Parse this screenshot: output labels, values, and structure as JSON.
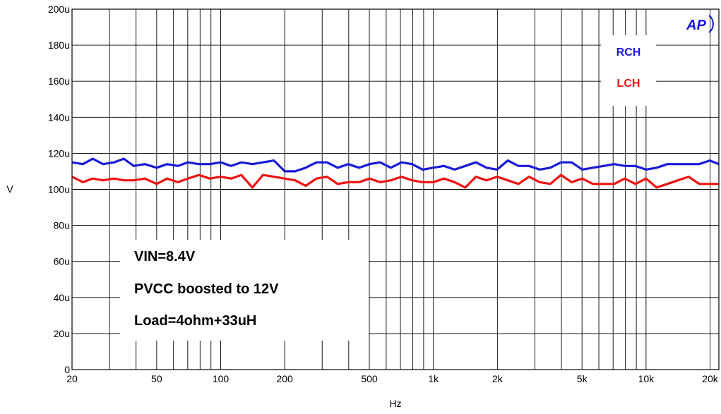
{
  "chart_data": {
    "type": "line",
    "xlabel": "Hz",
    "ylabel": "V",
    "x_scale": "log",
    "xlim": [
      20,
      22000
    ],
    "ylim": [
      0,
      200
    ],
    "grid": true,
    "x_ticks": [
      20,
      50,
      100,
      200,
      500,
      1000,
      2000,
      5000,
      10000,
      20000
    ],
    "x_tick_labels": [
      "20",
      "50",
      "100",
      "200",
      "500",
      "1k",
      "2k",
      "5k",
      "10k",
      "20k"
    ],
    "x_minor_gridlines": [
      30,
      40,
      60,
      70,
      80,
      90,
      300,
      400,
      600,
      700,
      800,
      900,
      3000,
      4000,
      6000,
      7000,
      8000,
      9000
    ],
    "y_ticks": [
      0,
      20,
      40,
      60,
      80,
      100,
      120,
      140,
      160,
      180,
      200
    ],
    "y_tick_labels": [
      "0",
      "20u",
      "40u",
      "60u",
      "80u",
      "100u",
      "120u",
      "140u",
      "160u",
      "180u",
      "200u"
    ],
    "legend_position": "top-right",
    "series": [
      {
        "name": "RCH",
        "color": "#1a1ad9",
        "x": [
          20,
          22.5,
          25,
          28,
          31.5,
          35,
          39,
          44,
          50,
          56,
          63,
          70,
          79,
          89,
          100,
          112,
          125,
          141,
          158,
          178,
          200,
          224,
          251,
          282,
          316,
          355,
          398,
          447,
          501,
          562,
          631,
          708,
          794,
          891,
          1000,
          1122,
          1259,
          1413,
          1585,
          1778,
          1995,
          2239,
          2512,
          2818,
          3162,
          3548,
          3981,
          4467,
          5012,
          5623,
          6310,
          7079,
          7943,
          8913,
          10000,
          11220,
          12589,
          14125,
          15849,
          17783,
          19953,
          22000
        ],
        "y": [
          115,
          114,
          117,
          114,
          115,
          117,
          113,
          114,
          112,
          114,
          113,
          115,
          114,
          114,
          115,
          113,
          115,
          114,
          115,
          116,
          110,
          110,
          112,
          115,
          115,
          112,
          114,
          112,
          114,
          115,
          112,
          115,
          114,
          111,
          112,
          113,
          111,
          113,
          115,
          112,
          111,
          116,
          113,
          113,
          111,
          112,
          115,
          115,
          111,
          112,
          113,
          114,
          113,
          113,
          111,
          112,
          114,
          114,
          114,
          114,
          116,
          114
        ]
      },
      {
        "name": "LCH",
        "color": "#ee1111",
        "x": [
          20,
          22.5,
          25,
          28,
          31.5,
          35,
          39,
          44,
          50,
          56,
          63,
          70,
          79,
          89,
          100,
          112,
          125,
          141,
          158,
          178,
          200,
          224,
          251,
          282,
          316,
          355,
          398,
          447,
          501,
          562,
          631,
          708,
          794,
          891,
          1000,
          1122,
          1259,
          1413,
          1585,
          1778,
          1995,
          2239,
          2512,
          2818,
          3162,
          3548,
          3981,
          4467,
          5012,
          5623,
          6310,
          7079,
          7943,
          8913,
          10000,
          11220,
          12589,
          14125,
          15849,
          17783,
          19953,
          22000
        ],
        "y": [
          107,
          104,
          106,
          105,
          106,
          105,
          105,
          106,
          103,
          106,
          104,
          106,
          108,
          106,
          107,
          106,
          108,
          101,
          108,
          107,
          106,
          105,
          102,
          106,
          107,
          103,
          104,
          104,
          106,
          104,
          105,
          107,
          105,
          104,
          104,
          106,
          104,
          101,
          107,
          105,
          107,
          105,
          103,
          107,
          104,
          103,
          108,
          104,
          106,
          103,
          103,
          103,
          106,
          103,
          106,
          101,
          103,
          105,
          107,
          103,
          103,
          103
        ]
      }
    ],
    "annotations": [
      "VIN=8.4V",
      "PVCC boosted to 12V",
      "Load=4ohm+33uH"
    ]
  },
  "legend": {
    "rch": "RCH",
    "lch": "LCH"
  },
  "logo": {
    "text": "AP",
    "color": "#1515e0"
  }
}
